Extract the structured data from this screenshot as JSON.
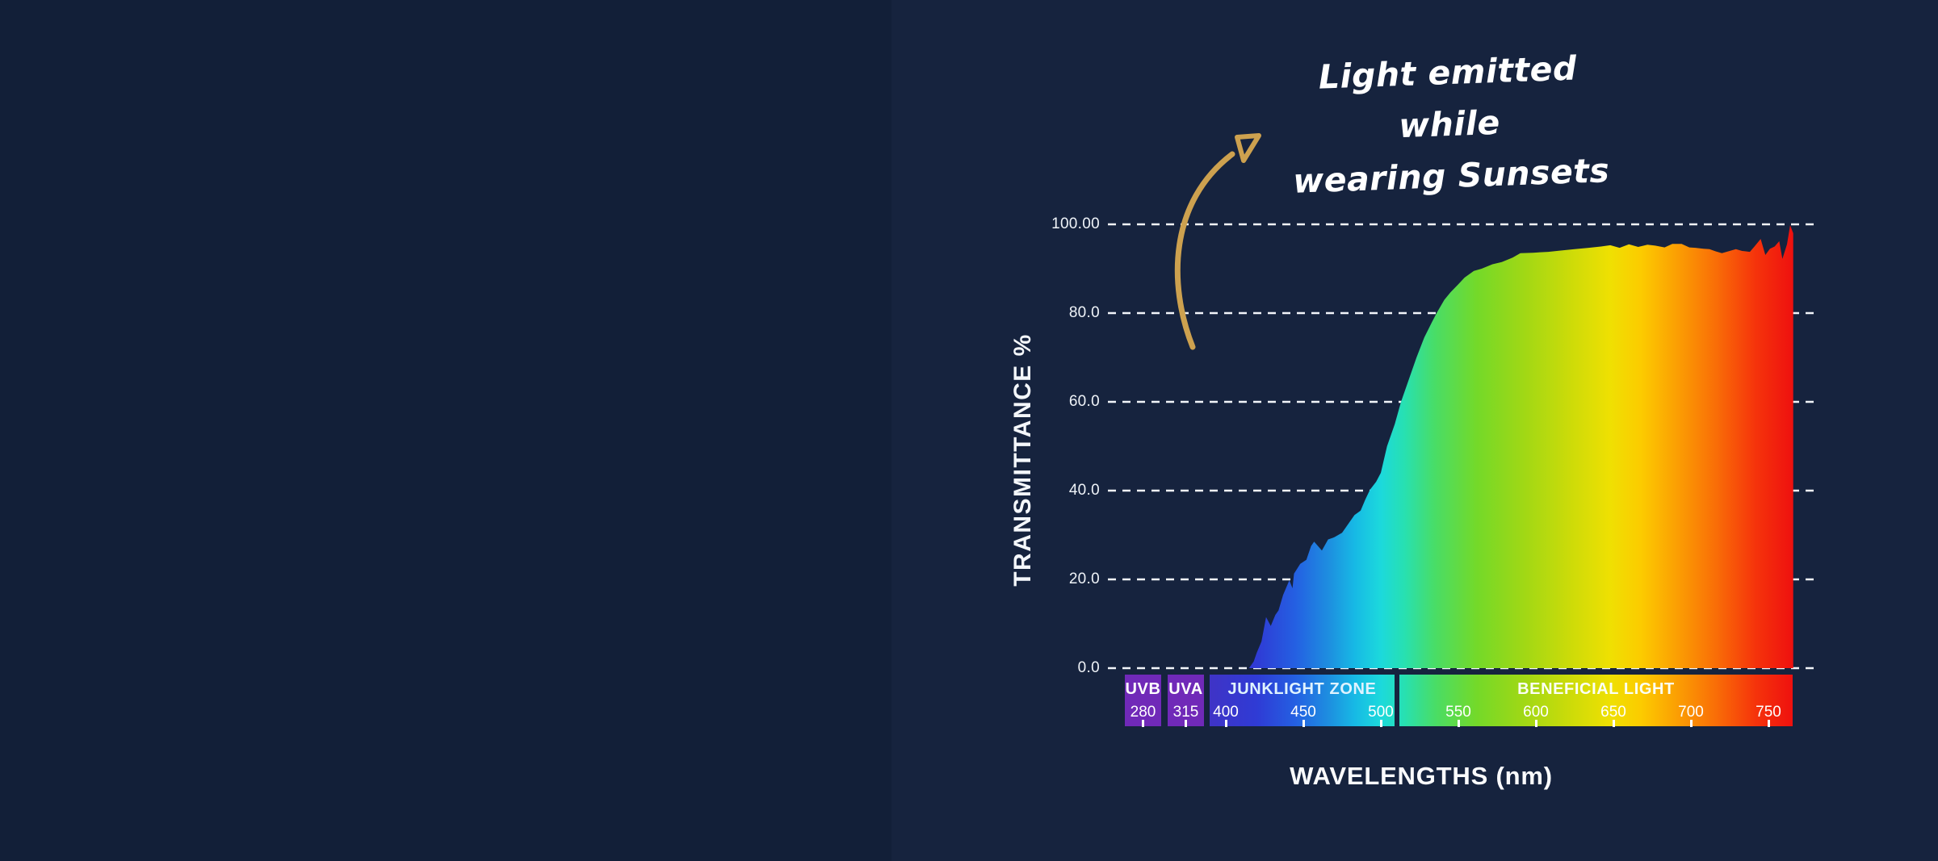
{
  "page": {
    "background_left": "#121f38",
    "background_right": "#16233e",
    "text_color": "#ffffff"
  },
  "annotation": {
    "line1": "Light emitted while",
    "line2": "wearing Sunsets",
    "arrow_color": "#cda14f"
  },
  "chart_data": {
    "type": "area",
    "title": "",
    "xlabel": "WAVELENGTHS (nm)",
    "ylabel": "TRANSMITTANCE %",
    "ylim": [
      0,
      100
    ],
    "xlim_nm": [
      400,
      767
    ],
    "grid": "dashed-horizontal-white",
    "y_ticks": [
      {
        "label": "100.00",
        "value": 100
      },
      {
        "label": "80.0",
        "value": 80
      },
      {
        "label": "60.0",
        "value": 60
      },
      {
        "label": "40.0",
        "value": 40
      },
      {
        "label": "20.0",
        "value": 20
      },
      {
        "label": "0.0",
        "value": 0
      }
    ],
    "series": [
      {
        "name": "Transmittance while wearing Sunsets",
        "points": [
          [
            415,
            0
          ],
          [
            418,
            1.5
          ],
          [
            420,
            3.5
          ],
          [
            423,
            6
          ],
          [
            426,
            11.5
          ],
          [
            429,
            9.5
          ],
          [
            432,
            12
          ],
          [
            434,
            13
          ],
          [
            437,
            16.5
          ],
          [
            441,
            19.8
          ],
          [
            443,
            18
          ],
          [
            444,
            21.3
          ],
          [
            448,
            23.5
          ],
          [
            452,
            24.4
          ],
          [
            455,
            27.5
          ],
          [
            457,
            28.5
          ],
          [
            462,
            26.5
          ],
          [
            466,
            29
          ],
          [
            470,
            29.5
          ],
          [
            475,
            30.5
          ],
          [
            479,
            32.5
          ],
          [
            483,
            34.5
          ],
          [
            487,
            35.5
          ],
          [
            490,
            38
          ],
          [
            493,
            40.2
          ],
          [
            497,
            42
          ],
          [
            500,
            44
          ],
          [
            504,
            50
          ],
          [
            509,
            55
          ],
          [
            513,
            60
          ],
          [
            518,
            65
          ],
          [
            523,
            70
          ],
          [
            528,
            74.5
          ],
          [
            533,
            78
          ],
          [
            536,
            80
          ],
          [
            541,
            83
          ],
          [
            545,
            84.7
          ],
          [
            550,
            86.5
          ],
          [
            554,
            88
          ],
          [
            560,
            89.5
          ],
          [
            565,
            90
          ],
          [
            572,
            91
          ],
          [
            578,
            91.5
          ],
          [
            585,
            92.5
          ],
          [
            590,
            93.5
          ],
          [
            598,
            93.6
          ],
          [
            608,
            93.8
          ],
          [
            616,
            94.1
          ],
          [
            625,
            94.4
          ],
          [
            634,
            94.7
          ],
          [
            642,
            95
          ],
          [
            648,
            95.3
          ],
          [
            654,
            94.7
          ],
          [
            660,
            95.5
          ],
          [
            666,
            94.9
          ],
          [
            672,
            95.4
          ],
          [
            677,
            95.2
          ],
          [
            683,
            94.8
          ],
          [
            688,
            95.6
          ],
          [
            694,
            95.6
          ],
          [
            699,
            94.8
          ],
          [
            703,
            94.7
          ],
          [
            708,
            94.5
          ],
          [
            712,
            94.4
          ],
          [
            716,
            93.9
          ],
          [
            720,
            93.5
          ],
          [
            725,
            94
          ],
          [
            729,
            94.4
          ],
          [
            733,
            94
          ],
          [
            738,
            93.8
          ],
          [
            741,
            95
          ],
          [
            745,
            96.7
          ],
          [
            748,
            93.1
          ],
          [
            751,
            94.5
          ],
          [
            754,
            95
          ],
          [
            757,
            96.2
          ],
          [
            759,
            92.2
          ],
          [
            762,
            95.5
          ],
          [
            764,
            99.8
          ],
          [
            766,
            98
          ]
        ]
      }
    ],
    "spectrum_stops": [
      [
        388,
        "#4033c5"
      ],
      [
        420,
        "#2f3bd5"
      ],
      [
        445,
        "#2460e2"
      ],
      [
        468,
        "#1d92e0"
      ],
      [
        483,
        "#17b9e5"
      ],
      [
        500,
        "#1cd9dc"
      ],
      [
        515,
        "#27e0b2"
      ],
      [
        535,
        "#49dd66"
      ],
      [
        562,
        "#74d929"
      ],
      [
        592,
        "#a0d815"
      ],
      [
        622,
        "#ccdb09"
      ],
      [
        648,
        "#efe002"
      ],
      [
        668,
        "#fccb00"
      ],
      [
        692,
        "#fb9d03"
      ],
      [
        716,
        "#f96e07"
      ],
      [
        742,
        "#f5330b"
      ],
      [
        767,
        "#ee0f0f"
      ]
    ]
  },
  "x_axis": {
    "zones": [
      {
        "id": "uvb",
        "label": "UVB",
        "numbers": [
          280
        ],
        "label_color": "#ffffff",
        "fill": "#7029b8"
      },
      {
        "id": "uva",
        "label": "UVA",
        "numbers": [
          315
        ],
        "label_color": "#ffffff",
        "fill": "#7029b8"
      },
      {
        "id": "junklight",
        "label": "JUNKLIGHT ZONE",
        "numbers": [
          400,
          450,
          500
        ],
        "label_color": "#dff3ff",
        "fill": "spectrum"
      },
      {
        "id": "beneficial",
        "label": "BENEFICIAL LIGHT",
        "numbers": [
          550,
          600,
          650,
          700,
          750
        ],
        "label_color": "#fbfff4",
        "fill": "spectrum"
      }
    ]
  }
}
